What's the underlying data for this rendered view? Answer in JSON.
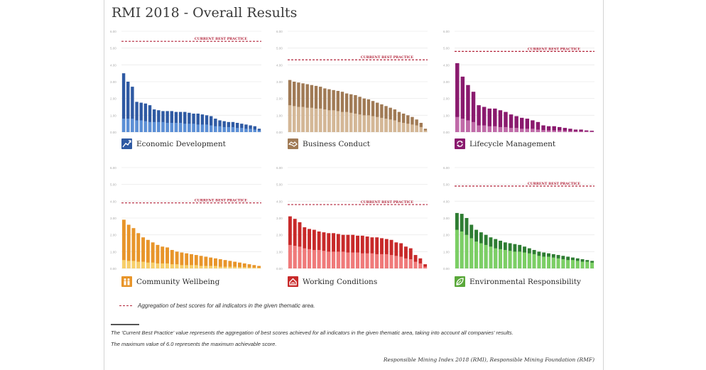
{
  "title": "RMI 2018 - Overall Results",
  "best_practice_label": "CURRENT BEST PRACTICE",
  "legend_text": "Aggregation of best scores for all indicators in the given thematic area.",
  "notes": [
    "The 'Current Best Practice' value represents the aggregation of best scores achieved for all indicators in the given thematic area, taking into account all companies' results.",
    "The maximum value of 6.0 represents the maximum achievable score."
  ],
  "source": "Responsible Mining Index 2018 (RMI), Responsible Mining Foundation (RMF)",
  "chart_data": [
    {
      "type": "bar",
      "title": "Economic Development",
      "icon": "trend-line-icon",
      "color_dark": "#2f5aa3",
      "color_light": "#5b8fd6",
      "ylim": [
        0,
        6
      ],
      "best_practice": 5.4,
      "values": [
        3.5,
        3.0,
        2.7,
        1.8,
        1.75,
        1.7,
        1.6,
        1.35,
        1.3,
        1.25,
        1.25,
        1.25,
        1.2,
        1.2,
        1.2,
        1.15,
        1.1,
        1.1,
        1.05,
        1.0,
        0.95,
        0.8,
        0.7,
        0.65,
        0.6,
        0.6,
        0.55,
        0.5,
        0.45,
        0.4,
        0.35,
        0.2
      ],
      "light_values": [
        0.8,
        0.8,
        0.8,
        0.7,
        0.7,
        0.65,
        0.6,
        0.6,
        0.6,
        0.6,
        0.55,
        0.55,
        0.55,
        0.55,
        0.5,
        0.5,
        0.5,
        0.45,
        0.45,
        0.45,
        0.4,
        0.35,
        0.35,
        0.3,
        0.3,
        0.3,
        0.25,
        0.25,
        0.2,
        0.2,
        0.15,
        0.1
      ]
    },
    {
      "type": "bar",
      "title": "Business Conduct",
      "icon": "handshake-icon",
      "color_dark": "#a07a55",
      "color_light": "#d4b796",
      "ylim": [
        0,
        6
      ],
      "best_practice": 4.3,
      "values": [
        3.1,
        3.0,
        2.95,
        2.9,
        2.85,
        2.8,
        2.75,
        2.7,
        2.6,
        2.55,
        2.5,
        2.45,
        2.4,
        2.3,
        2.25,
        2.2,
        2.1,
        2.0,
        1.95,
        1.85,
        1.75,
        1.65,
        1.55,
        1.45,
        1.35,
        1.2,
        1.1,
        1.0,
        0.9,
        0.75,
        0.55,
        0.2
      ],
      "light_values": [
        1.6,
        1.55,
        1.5,
        1.5,
        1.45,
        1.45,
        1.4,
        1.4,
        1.35,
        1.3,
        1.3,
        1.25,
        1.2,
        1.2,
        1.15,
        1.1,
        1.05,
        1.0,
        1.0,
        0.95,
        0.9,
        0.85,
        0.8,
        0.75,
        0.7,
        0.6,
        0.55,
        0.5,
        0.45,
        0.4,
        0.3,
        0.1
      ]
    },
    {
      "type": "bar",
      "title": "Lifecycle Management",
      "icon": "cycle-icon",
      "color_dark": "#8a1a6e",
      "color_light": "#c06aa8",
      "ylim": [
        0,
        6
      ],
      "best_practice": 4.8,
      "values": [
        4.1,
        3.3,
        2.8,
        2.4,
        1.6,
        1.5,
        1.4,
        1.4,
        1.3,
        1.2,
        1.05,
        0.95,
        0.85,
        0.8,
        0.7,
        0.6,
        0.4,
        0.35,
        0.35,
        0.3,
        0.25,
        0.2,
        0.15,
        0.15,
        0.1,
        0.08
      ],
      "light_values": [
        0.9,
        0.8,
        0.7,
        0.6,
        0.4,
        0.4,
        0.35,
        0.35,
        0.3,
        0.3,
        0.25,
        0.25,
        0.2,
        0.2,
        0.2,
        0.15,
        0.12,
        0.1,
        0.1,
        0.1,
        0.08,
        0.06,
        0.05,
        0.05,
        0.04,
        0.03
      ]
    },
    {
      "type": "bar",
      "title": "Community Wellbeing",
      "icon": "community-icon",
      "color_dark": "#e8952a",
      "color_light": "#f7cf6a",
      "ylim": [
        0,
        6
      ],
      "best_practice": 3.9,
      "values": [
        2.9,
        2.6,
        2.4,
        2.1,
        1.85,
        1.7,
        1.55,
        1.4,
        1.3,
        1.25,
        1.1,
        1.0,
        0.95,
        0.9,
        0.85,
        0.8,
        0.75,
        0.7,
        0.65,
        0.6,
        0.55,
        0.5,
        0.45,
        0.4,
        0.35,
        0.3,
        0.25,
        0.2,
        0.15
      ],
      "light_values": [
        0.5,
        0.45,
        0.45,
        0.4,
        0.4,
        0.35,
        0.35,
        0.3,
        0.3,
        0.3,
        0.25,
        0.25,
        0.2,
        0.2,
        0.2,
        0.2,
        0.15,
        0.15,
        0.15,
        0.15,
        0.1,
        0.1,
        0.1,
        0.1,
        0.08,
        0.08,
        0.06,
        0.05,
        0.04
      ]
    },
    {
      "type": "bar",
      "title": "Working Conditions",
      "icon": "house-icon",
      "color_dark": "#c82a2a",
      "color_light": "#f07a7a",
      "ylim": [
        0,
        6
      ],
      "best_practice": 3.8,
      "values": [
        3.1,
        2.95,
        2.75,
        2.45,
        2.35,
        2.3,
        2.2,
        2.15,
        2.1,
        2.1,
        2.05,
        2.0,
        2.0,
        2.0,
        1.95,
        1.95,
        1.9,
        1.85,
        1.85,
        1.8,
        1.75,
        1.7,
        1.55,
        1.5,
        1.3,
        1.2,
        0.8,
        0.6,
        0.25
      ],
      "light_values": [
        1.4,
        1.35,
        1.3,
        1.2,
        1.15,
        1.1,
        1.1,
        1.05,
        1.0,
        1.0,
        1.0,
        1.0,
        0.95,
        0.95,
        0.95,
        0.9,
        0.9,
        0.9,
        0.85,
        0.85,
        0.85,
        0.8,
        0.75,
        0.7,
        0.6,
        0.55,
        0.4,
        0.3,
        0.1
      ]
    },
    {
      "type": "bar",
      "title": "Environmental Responsibility",
      "icon": "leaf-icon",
      "color_dark": "#2e7d32",
      "color_light": "#7ccf65",
      "ylim": [
        0,
        6
      ],
      "best_practice": 4.9,
      "values": [
        3.3,
        3.25,
        3.0,
        2.6,
        2.3,
        2.15,
        2.0,
        1.85,
        1.75,
        1.65,
        1.55,
        1.5,
        1.45,
        1.4,
        1.3,
        1.2,
        1.1,
        1.0,
        0.95,
        0.9,
        0.85,
        0.8,
        0.75,
        0.7,
        0.65,
        0.6,
        0.55,
        0.5,
        0.45
      ],
      "light_values": [
        2.3,
        2.2,
        2.0,
        1.8,
        1.6,
        1.5,
        1.4,
        1.3,
        1.2,
        1.15,
        1.1,
        1.05,
        1.0,
        1.0,
        0.95,
        0.9,
        0.85,
        0.75,
        0.7,
        0.7,
        0.65,
        0.6,
        0.55,
        0.5,
        0.5,
        0.45,
        0.4,
        0.4,
        0.35
      ]
    }
  ]
}
